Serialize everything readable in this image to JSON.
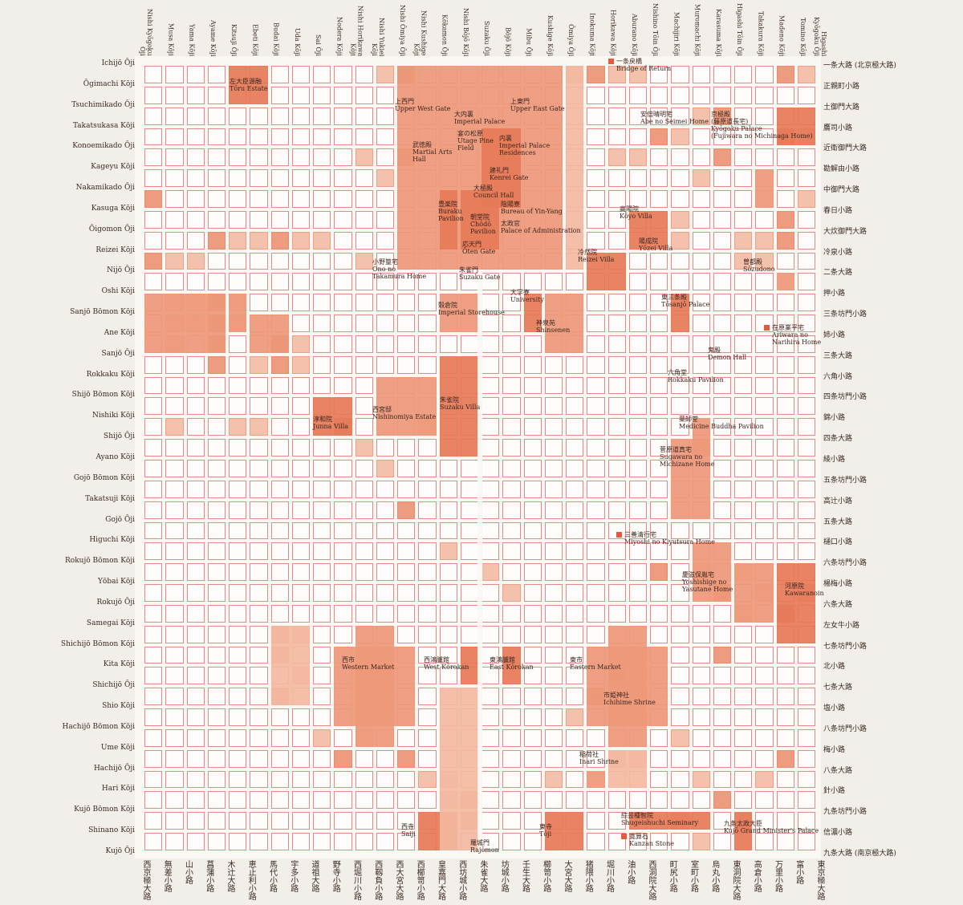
{
  "map": {
    "colors": {
      "grid_line": "#e3898a",
      "fill_light": "#f4c2ac",
      "fill_mid": "#ed9c7f",
      "fill_dark": "#e67a57",
      "paper": "#fbf7f2"
    },
    "vertical_roads": [
      {
        "en": "Nishi Kyōgoku Ōji",
        "jp": "西京極大路"
      },
      {
        "en": "Musa Kōji",
        "jp": "無差小路"
      },
      {
        "en": "Yama Kōji",
        "jp": "山小路"
      },
      {
        "en": "Ayame Kōji",
        "jp": "菖蒲小路"
      },
      {
        "en": "Kitsuji Ōji",
        "jp": "木辻大路"
      },
      {
        "en": "Ebeti Kōji",
        "jp": "恵止利小路"
      },
      {
        "en": "Budai Kōji",
        "jp": "馬代小路"
      },
      {
        "en": "Uda Kōji",
        "jp": "宇多小路"
      },
      {
        "en": "Sai Ōji",
        "jp": "道祖大路"
      },
      {
        "en": "Nodera Kōji",
        "jp": "野寺小路"
      },
      {
        "en": "Nishi Horikawa Kōji",
        "jp": "西堀川小路"
      },
      {
        "en": "Nishi Yukiei Kōji",
        "jp": "西靱負小路"
      },
      {
        "en": "Nishi Ōmiya Ōji",
        "jp": "西大宮大路"
      },
      {
        "en": "Nishi Kushige Kōji",
        "jp": "西櫛笥小路"
      },
      {
        "en": "Kōkamon Ōji",
        "jp": "皇嘉門大路"
      },
      {
        "en": "Nishi Bōjō Kōji",
        "jp": "西坊城小路"
      },
      {
        "en": "Suzaku Ōji",
        "jp": "朱雀大路"
      },
      {
        "en": "Bōjō Kōji",
        "jp": "坊城小路"
      },
      {
        "en": "Mibu Ōji",
        "jp": "壬生大路"
      },
      {
        "en": "Kushige Kōji",
        "jp": "櫛笥小路"
      },
      {
        "en": "Ōmiya Ōji",
        "jp": "大宮大路"
      },
      {
        "en": "Inokuma Kōji",
        "jp": "猪隈小路"
      },
      {
        "en": "Horikawa Kōji",
        "jp": "堀川小路"
      },
      {
        "en": "Aburano Kōji",
        "jp": "油小路"
      },
      {
        "en": "Nishino Tōin Ōji",
        "jp": "西洞院大路"
      },
      {
        "en": "Machijiri Kōji",
        "jp": "町尻小路"
      },
      {
        "en": "Muromachi Kōji",
        "jp": "室町小路"
      },
      {
        "en": "Karasuma Kōji",
        "jp": "烏丸小路"
      },
      {
        "en": "Higashi Tōin Ōji",
        "jp": "東洞院大路"
      },
      {
        "en": "Takakura Kōji",
        "jp": "高倉小路"
      },
      {
        "en": "Madeno Kōji",
        "jp": "万里小路"
      },
      {
        "en": "Tomino Kōji",
        "jp": "富小路"
      },
      {
        "en": "Higashi Kyōgoku Ōji",
        "jp": "東京極大路"
      }
    ],
    "horizontal_roads": [
      {
        "en": "Ichijō Ōji",
        "jp": "一条大路 (北京極大路)"
      },
      {
        "en": "Ōgimachi Kōji",
        "jp": "正親町小路"
      },
      {
        "en": "Tsuchimikado Ōji",
        "jp": "土御門大路"
      },
      {
        "en": "Takatsukasa Kōji",
        "jp": "鷹司小路"
      },
      {
        "en": "Konoemikado Ōji",
        "jp": "近衛御門大路"
      },
      {
        "en": "Kageyu Kōji",
        "jp": "勘解由小路"
      },
      {
        "en": "Nakamikado Ōji",
        "jp": "中御門大路"
      },
      {
        "en": "Kasuga Kōji",
        "jp": "春日小路"
      },
      {
        "en": "Ōigomon Ōji",
        "jp": "大炊御門大路"
      },
      {
        "en": "Reizei Kōji",
        "jp": "冷泉小路"
      },
      {
        "en": "Nijō Ōji",
        "jp": "二条大路"
      },
      {
        "en": "Oshi Kōji",
        "jp": "押小路"
      },
      {
        "en": "Sanjō Bōmon Kōji",
        "jp": "三条坊門小路"
      },
      {
        "en": "Ane Kōji",
        "jp": "姉小路"
      },
      {
        "en": "Sanjō Ōji",
        "jp": "三条大路"
      },
      {
        "en": "Rokkaku Kōji",
        "jp": "六角小路"
      },
      {
        "en": "Shijō Bōmon Kōji",
        "jp": "四条坊門小路"
      },
      {
        "en": "Nishiki Kōji",
        "jp": "錦小路"
      },
      {
        "en": "Shijō Ōji",
        "jp": "四条大路"
      },
      {
        "en": "Ayano Kōji",
        "jp": "綾小路"
      },
      {
        "en": "Gojō Bōmon Kōji",
        "jp": "五条坊門小路"
      },
      {
        "en": "Takatsuji Kōji",
        "jp": "高辻小路"
      },
      {
        "en": "Gojō Ōji",
        "jp": "五条大路"
      },
      {
        "en": "Higuchi Kōji",
        "jp": "樋口小路"
      },
      {
        "en": "Rokujō Bōmon Kōji",
        "jp": "六条坊門小路"
      },
      {
        "en": "Yōbai Kōji",
        "jp": "楊梅小路"
      },
      {
        "en": "Rokujō Ōji",
        "jp": "六条大路"
      },
      {
        "en": "Samegai Kōji",
        "jp": "左女牛小路"
      },
      {
        "en": "Shichijō Bōmon Kōji",
        "jp": "七条坊門小路"
      },
      {
        "en": "Kita Kōji",
        "jp": "北小路"
      },
      {
        "en": "Shichijō Ōji",
        "jp": "七条大路"
      },
      {
        "en": "Shio Kōji",
        "jp": "塩小路"
      },
      {
        "en": "Hachijō Bōmon Kōji",
        "jp": "八条坊門小路"
      },
      {
        "en": "Ume Kōji",
        "jp": "梅小路"
      },
      {
        "en": "Hachijō Ōji",
        "jp": "八条大路"
      },
      {
        "en": "Hari Kōji",
        "jp": "針小路"
      },
      {
        "en": "Kujō Bōmon Kōji",
        "jp": "九条坊門小路"
      },
      {
        "en": "Shinano Kōji",
        "jp": "信濃小路"
      },
      {
        "en": "Kujō Ōji",
        "jp": "九条大路 (南京極大路)"
      }
    ],
    "places": [
      {
        "jp": "左大臣源融",
        "en": "Tōru Estate"
      },
      {
        "jp": "上西門",
        "en": "Upper West Gate"
      },
      {
        "jp": "大内裏",
        "en": "Imperial Palace"
      },
      {
        "jp": "上東門",
        "en": "Upper East Gate"
      },
      {
        "jp": "宴の松原",
        "en": "Utage Pine\nField"
      },
      {
        "jp": "武徳殿",
        "en": "Martial Arts\nHall"
      },
      {
        "jp": "内裏",
        "en": "Imperial Palace\nResidences"
      },
      {
        "jp": "建礼門",
        "en": "Kenrei Gate"
      },
      {
        "jp": "大極殿",
        "en": "Council Hall"
      },
      {
        "jp": "豊楽院",
        "en": "Buraku\nPavilion"
      },
      {
        "jp": "朝堂院",
        "en": "Chōdō\nPavilion"
      },
      {
        "jp": "陰陽寮",
        "en": "Bureau of Yin-Yang"
      },
      {
        "jp": "太政官",
        "en": "Palace of Administration"
      },
      {
        "jp": "応天門",
        "en": "Ōten Gate"
      },
      {
        "jp": "朱雀門",
        "en": "Suzaku Gate"
      },
      {
        "jp": "小野篁宅",
        "en": "Ono no\nTakamura Home"
      },
      {
        "jp": "一条戻橋",
        "en": "Bridge of Return"
      },
      {
        "jp": "安倍晴明宅",
        "en": "Abe no Seimei Home"
      },
      {
        "jp": "京極殿\n(藤原道長宅)",
        "en": "Kyōgoku Palace\n(Fujiwara no Michinaga Home)"
      },
      {
        "jp": "高陽院",
        "en": "Kōyo Villa"
      },
      {
        "jp": "陽成院",
        "en": "Yōzei Villa"
      },
      {
        "jp": "冷然院",
        "en": "Reizei Villa"
      },
      {
        "jp": "曽都殿",
        "en": "Sōzudono"
      },
      {
        "jp": "穀倉院",
        "en": "Imperial Storehouse"
      },
      {
        "jp": "大学寮",
        "en": "University"
      },
      {
        "jp": "神泉苑",
        "en": "Shinsenen"
      },
      {
        "jp": "東三条殿",
        "en": "Tōsanjō Palace"
      },
      {
        "jp": "在原業平宅",
        "en": "Ariwara no\nNarihira Home"
      },
      {
        "jp": "鬼殿",
        "en": "Demon Hall"
      },
      {
        "jp": "六角堂",
        "en": "Rokkaku Pavilion"
      },
      {
        "jp": "淳和院",
        "en": "Junna Villa"
      },
      {
        "jp": "西宮邸",
        "en": "Nishinomiya Estate"
      },
      {
        "jp": "朱雀院",
        "en": "Suzaku Villa"
      },
      {
        "jp": "薬師堂",
        "en": "Medicine Buddha Pavilion"
      },
      {
        "jp": "菅原道真宅",
        "en": "Sugawara no\nMichizane Home"
      },
      {
        "jp": "三善清行宅",
        "en": "Miyoshi no Kiyutsura Home"
      },
      {
        "jp": "慶滋保胤宅",
        "en": "Yoshishige no\nYasutane Home"
      },
      {
        "jp": "河原院",
        "en": "Kawaranoin"
      },
      {
        "jp": "西市",
        "en": "Western Market"
      },
      {
        "jp": "西鴻臚館",
        "en": "West Kōrokan"
      },
      {
        "jp": "東鴻臚館",
        "en": "East Kōrokan"
      },
      {
        "jp": "東市",
        "en": "Eastern Market"
      },
      {
        "jp": "市姫神社",
        "en": "Ichihime Shrine"
      },
      {
        "jp": "稲荷社",
        "en": "Inari Shrine"
      },
      {
        "jp": "綜芸種智院",
        "en": "Shugeishuchi Seminary"
      },
      {
        "jp": "九条太政大臣",
        "en": "Kujō Grand Minister's Palace"
      },
      {
        "jp": "寛算石",
        "en": "Kanzan Stone"
      },
      {
        "jp": "西寺",
        "en": "Saiji"
      },
      {
        "jp": "羅城門",
        "en": "Rajōmon"
      },
      {
        "jp": "東寺",
        "en": "Tōji"
      }
    ]
  }
}
